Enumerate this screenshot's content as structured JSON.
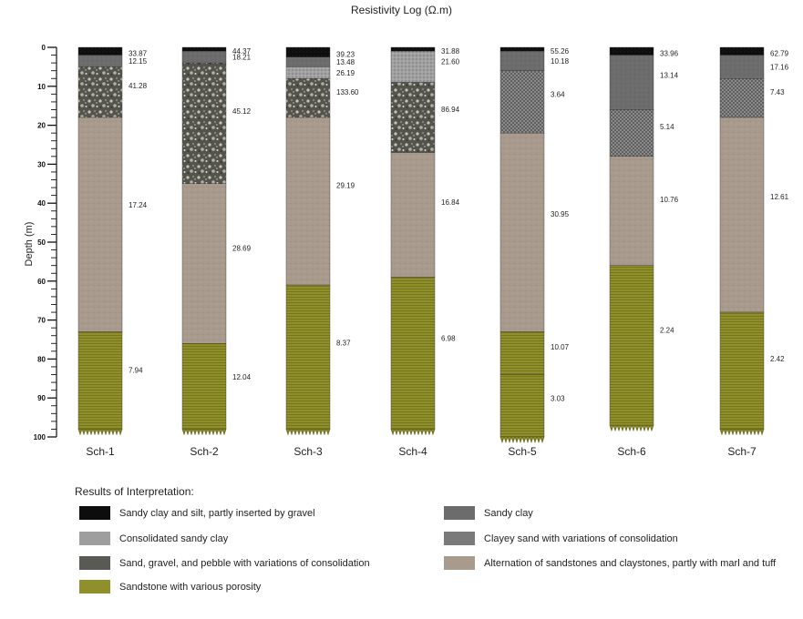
{
  "title": "Resistivity Log (Ω.m)",
  "yaxis": {
    "label": "Depth (m)",
    "ticks": [
      0,
      10,
      20,
      30,
      40,
      50,
      60,
      70,
      80,
      90,
      100
    ],
    "range": [
      0,
      100
    ]
  },
  "columns": [
    {
      "name": "Sch-1",
      "layers": [
        {
          "top": 0,
          "bottom": 2,
          "unit": "silt",
          "res": "33.87"
        },
        {
          "top": 2,
          "bottom": 5,
          "unit": "sandyclay",
          "res": "12.15"
        },
        {
          "top": 5,
          "bottom": 18,
          "unit": "gravel",
          "res": "41.28"
        },
        {
          "top": 18,
          "bottom": 73,
          "unit": "alternation",
          "res": "17.24"
        },
        {
          "top": 73,
          "bottom": 98,
          "unit": "sandstone",
          "res": "7.94"
        }
      ]
    },
    {
      "name": "Sch-2",
      "layers": [
        {
          "top": 0,
          "bottom": 1,
          "unit": "silt",
          "res": "44.37"
        },
        {
          "top": 1,
          "bottom": 4,
          "unit": "sandyclay",
          "res": "18.21"
        },
        {
          "top": 4,
          "bottom": 35,
          "unit": "gravel",
          "res": "45.12"
        },
        {
          "top": 35,
          "bottom": 76,
          "unit": "alternation",
          "res": "28.69"
        },
        {
          "top": 76,
          "bottom": 98,
          "unit": "sandstone",
          "res": "12.04"
        }
      ]
    },
    {
      "name": "Sch-3",
      "layers": [
        {
          "top": 0,
          "bottom": 2.5,
          "unit": "silt",
          "res": "39.23"
        },
        {
          "top": 2.5,
          "bottom": 5,
          "unit": "sandyclay",
          "res": "13.48"
        },
        {
          "top": 5,
          "bottom": 8,
          "unit": "consolidated",
          "res": "26.19"
        },
        {
          "top": 8,
          "bottom": 18,
          "unit": "gravel",
          "res": "133.60"
        },
        {
          "top": 18,
          "bottom": 61,
          "unit": "alternation",
          "res": "29.19"
        },
        {
          "top": 61,
          "bottom": 98,
          "unit": "sandstone",
          "res": "8.37"
        }
      ]
    },
    {
      "name": "Sch-4",
      "layers": [
        {
          "top": 0,
          "bottom": 1,
          "unit": "silt",
          "res": "31.88"
        },
        {
          "top": 1,
          "bottom": 9,
          "unit": "consolidated",
          "res": "21.60"
        },
        {
          "top": 9,
          "bottom": 27,
          "unit": "gravel",
          "res": "86.94"
        },
        {
          "top": 27,
          "bottom": 59,
          "unit": "alternation",
          "res": "16.84"
        },
        {
          "top": 59,
          "bottom": 98,
          "unit": "sandstone",
          "res": "6.98"
        }
      ]
    },
    {
      "name": "Sch-5",
      "layers": [
        {
          "top": 0,
          "bottom": 1,
          "unit": "silt",
          "res": "55.26"
        },
        {
          "top": 1,
          "bottom": 6,
          "unit": "sandyclay",
          "res": "10.18"
        },
        {
          "top": 6,
          "bottom": 22,
          "unit": "clayeysand",
          "res": "3.64"
        },
        {
          "top": 22,
          "bottom": 73,
          "unit": "alternation",
          "res": "30.95"
        },
        {
          "top": 73,
          "bottom": 84,
          "unit": "sandstone",
          "res": "10.07"
        },
        {
          "top": 84,
          "bottom": 100,
          "unit": "sandstone",
          "res": "3.03"
        }
      ]
    },
    {
      "name": "Sch-6",
      "layers": [
        {
          "top": 0,
          "bottom": 2,
          "unit": "silt",
          "res": "33.96"
        },
        {
          "top": 2,
          "bottom": 16,
          "unit": "sandyclay",
          "res": "13.14"
        },
        {
          "top": 16,
          "bottom": 28,
          "unit": "clayeysand",
          "res": "5.14"
        },
        {
          "top": 28,
          "bottom": 56,
          "unit": "alternation",
          "res": "10.76"
        },
        {
          "top": 56,
          "bottom": 97,
          "unit": "sandstone",
          "res": "2.24"
        }
      ]
    },
    {
      "name": "Sch-7",
      "layers": [
        {
          "top": 0,
          "bottom": 2,
          "unit": "silt",
          "res": "62.79"
        },
        {
          "top": 2,
          "bottom": 8,
          "unit": "sandyclay",
          "res": "17.16"
        },
        {
          "top": 8,
          "bottom": 18,
          "unit": "clayeysand",
          "res": "7.43"
        },
        {
          "top": 18,
          "bottom": 68,
          "unit": "alternation",
          "res": "12.61"
        },
        {
          "top": 68,
          "bottom": 98,
          "unit": "sandstone",
          "res": "2.42"
        }
      ]
    }
  ],
  "legend": {
    "title": "Results of Interpretation:",
    "items": [
      {
        "unit": "silt",
        "label": "Sandy clay and silt, partly inserted by gravel"
      },
      {
        "unit": "consolidated",
        "label": "Consolidated sandy clay"
      },
      {
        "unit": "gravel",
        "label": "Sand, gravel, and pebble with variations of consolidation"
      },
      {
        "unit": "sandstone",
        "label": "Sandstone with various porosity"
      },
      {
        "unit": "sandyclay",
        "label": "Sandy clay"
      },
      {
        "unit": "clayeysand",
        "label": "Clayey sand with variations of consolidation"
      },
      {
        "unit": "alternation",
        "label": "Alternation of sandstones and claystones, partly with marl and tuff"
      }
    ]
  },
  "colors": {
    "silt": "#111111",
    "sandyclay": "#6e6e6e",
    "consolidated": "#9a9a9a",
    "gravel": "#5a5a55",
    "clayeysand": "#7d7d7d",
    "alternation": "#a8998d",
    "sandstone": "#8d8d2a"
  }
}
